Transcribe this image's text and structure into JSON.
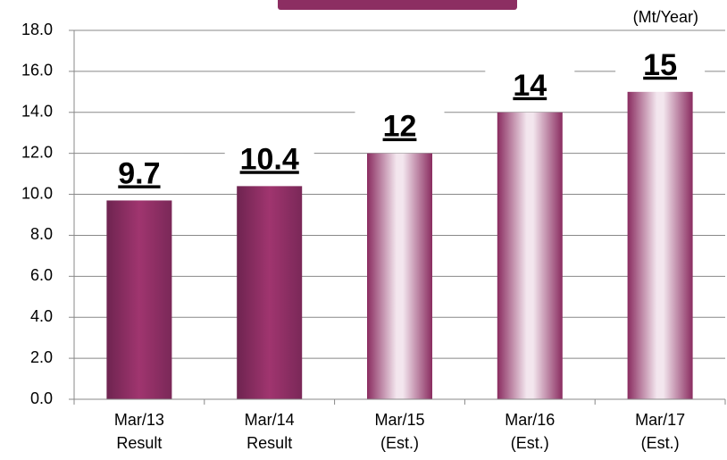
{
  "chart_data": {
    "type": "bar",
    "unit": "(Mt/Year)",
    "categories": [
      [
        "Mar/13",
        "Result"
      ],
      [
        "Mar/14",
        "Result"
      ],
      [
        "Mar/15",
        "(Est.)"
      ],
      [
        "Mar/16",
        "(Est.)"
      ],
      [
        "Mar/17",
        "(Est.)"
      ]
    ],
    "values": [
      9.7,
      10.4,
      12,
      14,
      15
    ],
    "color": "#96336a",
    "bar_styles": [
      "dark",
      "dark",
      "light",
      "light",
      "light"
    ],
    "ylim": [
      0,
      18
    ],
    "yticks": [
      {
        "value": 0,
        "label": "0.0"
      },
      {
        "value": 2,
        "label": "2.0"
      },
      {
        "value": 4,
        "label": "4.0"
      },
      {
        "value": 6,
        "label": "6.0"
      },
      {
        "value": 8,
        "label": "8.0"
      },
      {
        "value": 10,
        "label": "10.0"
      },
      {
        "value": 12,
        "label": "12.0"
      },
      {
        "value": 14,
        "label": "14.0"
      },
      {
        "value": 16,
        "label": "16.0"
      },
      {
        "value": 18,
        "label": "18.0"
      }
    ],
    "grid": true
  }
}
